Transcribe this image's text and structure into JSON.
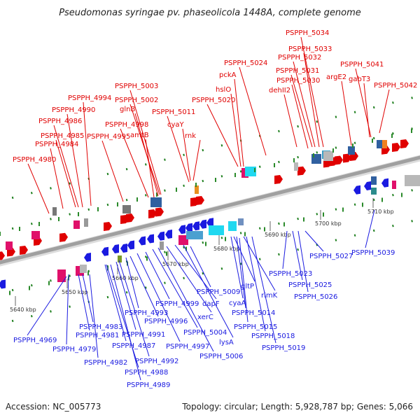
{
  "title": "Pseudomonas syringae pv. phaseolicola 1448A, complete genome",
  "footer": {
    "accession": "Accession: NC_005773",
    "summary": "Topology: circular; Length: 5,928,787 bp; Genes: 5,066"
  },
  "colors": {
    "forward_strand": "#e00000",
    "reverse_strand": "#1a1ae0",
    "backbone": "#a0a0a0",
    "tick": "#2a8a2a",
    "grid_line": "#1e7f1e",
    "feature_magenta": "#e0106a",
    "feature_cyan": "#20d8f0",
    "feature_grey": "#b8b8b8",
    "feature_steel": "#3060a0"
  },
  "scale_ticks": [
    "5640 kbp",
    "5650 kbp",
    "5660 kbp",
    "5670 kbp",
    "5680 kbp",
    "5690 kbp",
    "5700 kbp",
    "5710 kbp"
  ],
  "top_labels": [
    "PSPPH_4980",
    "PSPPH_4984",
    "PSPPH_4985",
    "PSPPH_4986",
    "PSPPH_4990",
    "PSPPH_4994",
    "PSPPH_4995",
    "PSPPH_4998",
    "amtB",
    "glnB",
    "PSPPH_5002",
    "PSPPH_5003",
    "PSPPH_5011",
    "cyaY",
    "rnk",
    "PSPPH_5020",
    "hslO",
    "pckA",
    "PSPPH_5024",
    "dehII2",
    "PSPPH_5030",
    "PSPPH_5031",
    "PSPPH_5032",
    "PSPPH_5033",
    "PSPPH_5034",
    "argE2",
    "gabT3",
    "PSPPH_5041",
    "PSPPH_5042"
  ],
  "bottom_labels": [
    "PSPPH_4969",
    "PSPPH_4979",
    "PSPPH_4981",
    "PSPPH_4983",
    "PSPPH_4982",
    "PSPPH_4987",
    "PSPPH_4988",
    "PSPPH_4989",
    "PSPPH_4991",
    "PSPPH_4992",
    "PSPPH_4993",
    "PSPPH_4996",
    "PSPPH_4997",
    "PSPPH_4999",
    "PSPPH_5004",
    "PSPPH_5006",
    "xerC",
    "dapF",
    "lysA",
    "PSPPH_5009",
    "cyaA",
    "gltP",
    "PSPPH_5014",
    "PSPPH_5015",
    "rimK",
    "PSPPH_5018",
    "PSPPH_5019",
    "PSPPH_5023",
    "PSPPH_5025",
    "PSPPH_5026",
    "PSPPH_5027",
    "PSPPH_5039"
  ]
}
